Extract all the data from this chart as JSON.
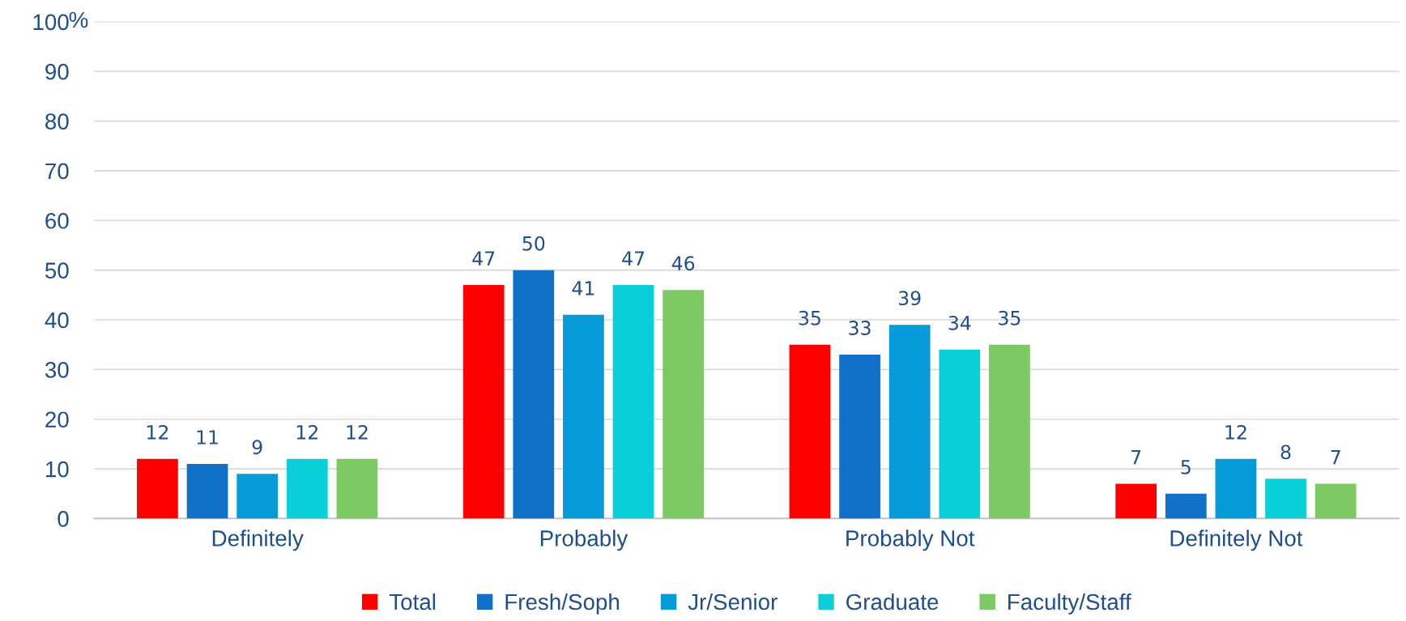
{
  "chart_data": {
    "type": "bar",
    "categories": [
      "Definitely",
      "Probably",
      "Probably Not",
      "Definitely Not"
    ],
    "series": [
      {
        "name": "Total",
        "color": "#ff0000",
        "values": [
          12,
          47,
          35,
          7
        ]
      },
      {
        "name": "Fresh/Soph",
        "color": "#1170c8",
        "values": [
          11,
          50,
          33,
          5
        ]
      },
      {
        "name": "Jr/Senior",
        "color": "#079ad8",
        "values": [
          9,
          41,
          39,
          12
        ]
      },
      {
        "name": "Graduate",
        "color": "#0bcfd8",
        "values": [
          12,
          47,
          34,
          8
        ]
      },
      {
        "name": "Faculty/Staff",
        "color": "#7dc963",
        "values": [
          12,
          46,
          35,
          7
        ]
      }
    ],
    "ylabel": "%",
    "ylim": [
      0,
      100
    ],
    "yticks": [
      0,
      10,
      20,
      30,
      40,
      50,
      60,
      70,
      80,
      90,
      100
    ],
    "grid": "y",
    "legend": "bottom",
    "data_labels": true
  }
}
